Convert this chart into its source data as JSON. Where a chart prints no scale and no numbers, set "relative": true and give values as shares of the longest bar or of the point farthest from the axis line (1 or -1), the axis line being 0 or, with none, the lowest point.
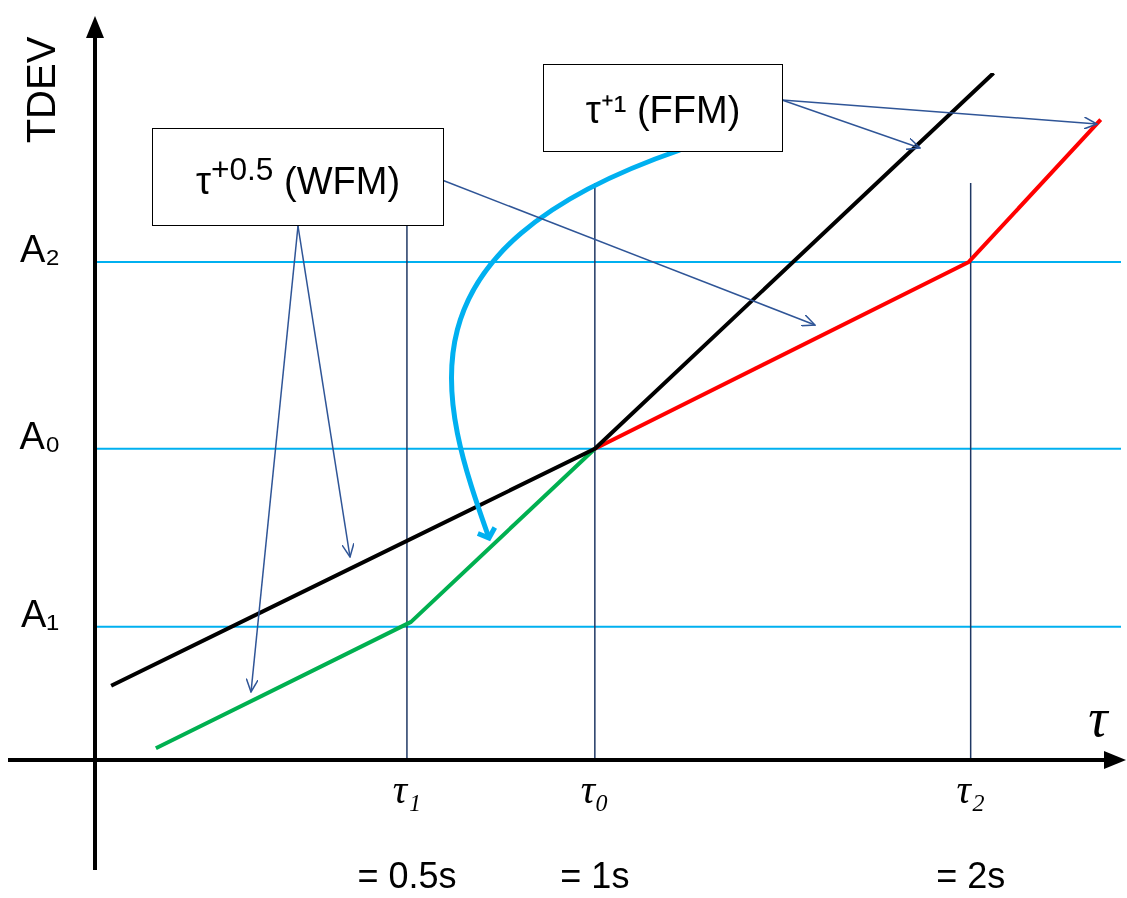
{
  "chart_data": {
    "type": "line",
    "relative": true,
    "xlabel": "τ",
    "ylabel": "TDEV",
    "legend": false,
    "marker": "none",
    "line_style": "solid",
    "xlim": [
      -0.33,
      2.4
    ],
    "xticks": [
      {
        "value": 0.5,
        "label": "τ₁ = 0.5s"
      },
      {
        "value": 1,
        "label": "τ₀ = 1s"
      },
      {
        "value": 2,
        "label": "τ₂ = 2s"
      }
    ],
    "series": [
      {
        "color": "#000000",
        "x": [
          -0.287,
          1,
          2.061
        ],
        "values": [
          0.108,
          0.453,
          1
        ]
      },
      {
        "color": "#00b050",
        "x": [
          -0.168,
          0.511,
          1
        ],
        "values": [
          0.017,
          0.201,
          0.453
        ]
      },
      {
        "color": "#ff0000",
        "x": [
          1,
          1.995,
          2.346
        ],
        "values": [
          0.453,
          0.725,
          0.932
        ]
      }
    ],
    "ref_lines": [
      {
        "axis": "y",
        "value": 0.725,
        "label": "A₂",
        "color": "#00b0f0"
      },
      {
        "axis": "y",
        "value": 0.453,
        "label": "A₀",
        "color": "#00b0f0"
      },
      {
        "axis": "y",
        "value": 0.194,
        "label": "A₁",
        "color": "#00b0f0"
      },
      {
        "axis": "x",
        "value": 0.5,
        "color": "#1f3864"
      },
      {
        "axis": "x",
        "value": 1,
        "color": "#1f3864"
      },
      {
        "axis": "x",
        "value": 2,
        "color": "#1f3864"
      }
    ],
    "annotations": [
      "τ⁺¹ (FFM)",
      "τ$^{+0.5}$ (WFM)"
    ]
  }
}
